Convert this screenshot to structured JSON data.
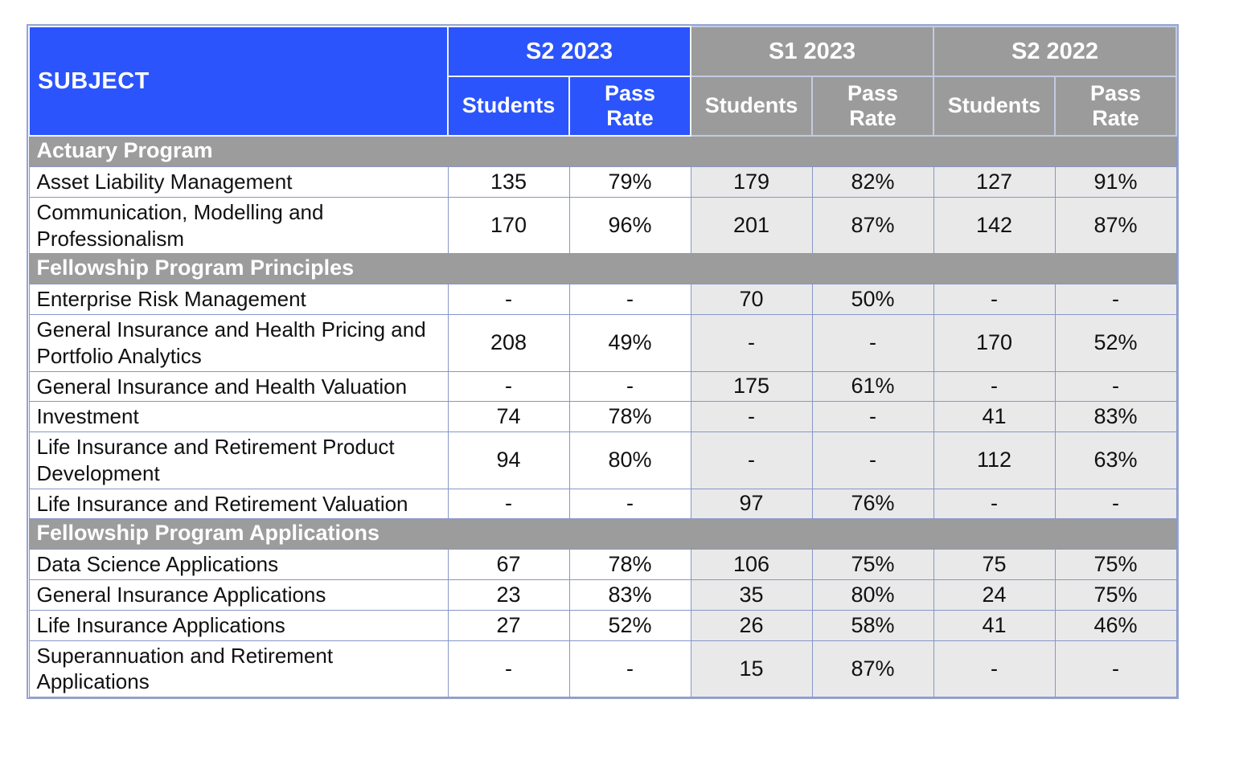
{
  "header": {
    "subject": "SUBJECT",
    "groups": [
      {
        "label": "S2 2023",
        "theme": "blue"
      },
      {
        "label": "S1 2023",
        "theme": "gray"
      },
      {
        "label": "S2 2022",
        "theme": "gray"
      }
    ],
    "subcolumns": [
      "Students",
      "Pass Rate"
    ]
  },
  "sections": [
    {
      "title": "Actuary Program",
      "rows": [
        {
          "subject": "Asset Liability Management",
          "values": [
            "135",
            "79%",
            "179",
            "82%",
            "127",
            "91%"
          ]
        },
        {
          "subject": "Communication, Modelling and Professionalism",
          "values": [
            "170",
            "96%",
            "201",
            "87%",
            "142",
            "87%"
          ]
        }
      ]
    },
    {
      "title": "Fellowship Program Principles",
      "rows": [
        {
          "subject": "Enterprise Risk Management",
          "values": [
            "-",
            "-",
            "70",
            "50%",
            "-",
            "-"
          ]
        },
        {
          "subject": "General Insurance and Health Pricing and Portfolio Analytics",
          "values": [
            "208",
            "49%",
            "-",
            "-",
            "170",
            "52%"
          ]
        },
        {
          "subject": "General Insurance and Health Valuation",
          "values": [
            "-",
            "-",
            "175",
            "61%",
            "-",
            "-"
          ]
        },
        {
          "subject": "Investment",
          "values": [
            "74",
            "78%",
            "-",
            "-",
            "41",
            "83%"
          ]
        },
        {
          "subject": "Life Insurance and Retirement Product Development",
          "values": [
            "94",
            "80%",
            "-",
            "-",
            "112",
            "63%"
          ]
        },
        {
          "subject": "Life Insurance and Retirement Valuation",
          "values": [
            "-",
            "-",
            "97",
            "76%",
            "-",
            "-"
          ]
        }
      ]
    },
    {
      "title": "Fellowship Program Applications",
      "rows": [
        {
          "subject": "Data Science Applications",
          "values": [
            "67",
            "78%",
            "106",
            "75%",
            "75",
            "75%"
          ]
        },
        {
          "subject": "General Insurance Applications",
          "values": [
            "23",
            "83%",
            "35",
            "80%",
            "24",
            "75%"
          ]
        },
        {
          "subject": "Life Insurance Applications",
          "values": [
            "27",
            "52%",
            "26",
            "58%",
            "41",
            "46%"
          ]
        },
        {
          "subject": "Superannuation and Retirement Applications",
          "values": [
            "-",
            "-",
            "15",
            "87%",
            "-",
            "-"
          ]
        }
      ]
    }
  ],
  "colors": {
    "header_blue": "#2b54fc",
    "header_gray": "#9b9b9b",
    "section_band_gray": "#9c9c9c",
    "shaded_cell": "#e9e9ea",
    "cell_border": "#8796c8",
    "header_text": "#ffffff",
    "body_text": "#111111"
  },
  "chart_data": {
    "type": "table",
    "title": "Actuarial exam results by subject and semester",
    "column_groups": [
      "S2 2023",
      "S1 2023",
      "S2 2022"
    ],
    "columns": [
      "Subject",
      "S2 2023 Students",
      "S2 2023 Pass Rate",
      "S1 2023 Students",
      "S1 2023 Pass Rate",
      "S2 2022 Students",
      "S2 2022 Pass Rate"
    ],
    "rows": [
      [
        "Actuary Program",
        "",
        "",
        "",
        "",
        "",
        ""
      ],
      [
        "Asset Liability Management",
        "135",
        "79%",
        "179",
        "82%",
        "127",
        "91%"
      ],
      [
        "Communication, Modelling and Professionalism",
        "170",
        "96%",
        "201",
        "87%",
        "142",
        "87%"
      ],
      [
        "Fellowship Program Principles",
        "",
        "",
        "",
        "",
        "",
        ""
      ],
      [
        "Enterprise Risk Management",
        "-",
        "-",
        "70",
        "50%",
        "-",
        "-"
      ],
      [
        "General Insurance and Health Pricing and Portfolio Analytics",
        "208",
        "49%",
        "-",
        "-",
        "170",
        "52%"
      ],
      [
        "General Insurance and Health Valuation",
        "-",
        "-",
        "175",
        "61%",
        "-",
        "-"
      ],
      [
        "Investment",
        "74",
        "78%",
        "-",
        "-",
        "41",
        "83%"
      ],
      [
        "Life Insurance and Retirement Product Development",
        "94",
        "80%",
        "-",
        "-",
        "112",
        "63%"
      ],
      [
        "Life Insurance and Retirement Valuation",
        "-",
        "-",
        "97",
        "76%",
        "-",
        "-"
      ],
      [
        "Fellowship Program Applications",
        "",
        "",
        "",
        "",
        "",
        ""
      ],
      [
        "Data Science Applications",
        "67",
        "78%",
        "106",
        "75%",
        "75",
        "75%"
      ],
      [
        "General Insurance Applications",
        "23",
        "83%",
        "35",
        "80%",
        "24",
        "75%"
      ],
      [
        "Life Insurance Applications",
        "27",
        "52%",
        "26",
        "58%",
        "41",
        "46%"
      ],
      [
        "Superannuation and Retirement Applications",
        "-",
        "-",
        "15",
        "87%",
        "-",
        "-"
      ]
    ]
  }
}
